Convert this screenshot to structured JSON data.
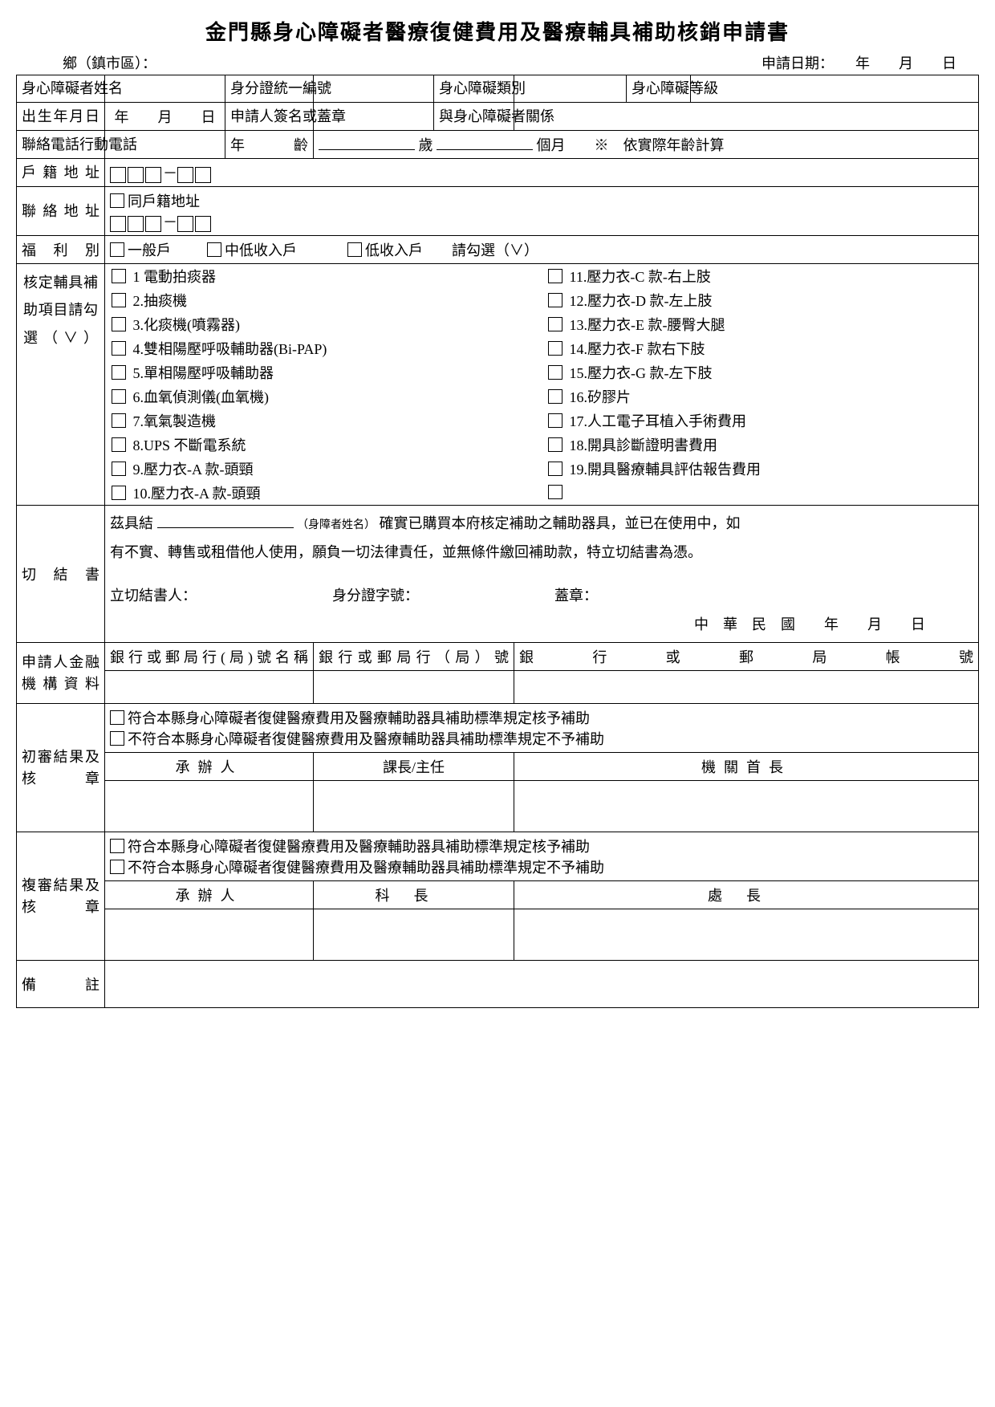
{
  "title": "金門縣身心障礙者醫療復健費用及醫療輔具補助核銷申請書",
  "topleft": "鄉（鎮市區）：",
  "topright_date": "申請日期：　　年　　月　　日",
  "labels": {
    "name": "身心障礙者姓名",
    "id": "身分證統一編號",
    "type": "身心障礙類別",
    "level": "身心障礙等級",
    "birth": "出生年月日",
    "birth_val": "年　　月　　日",
    "applicant": "申請人簽名或蓋章",
    "relation": "與身心障礙者關係",
    "tel": "聯絡電話行動電話",
    "age_label": "年　　　齡",
    "age_unit1": "歲",
    "age_unit2": "個月",
    "age_note": "※　依實際年齡計算",
    "reg_addr": "戶籍地址",
    "contact_addr": "聯絡地址",
    "same_addr": "同戶籍地址",
    "welfare": "福利別",
    "welfare_opts": [
      "一般戶",
      "中低收入戶",
      "低收入戶"
    ],
    "welfare_hint": "請勾選（∨）",
    "approved_items": "核定輔具補助項目請勾選（∨）",
    "affidavit": "切結書",
    "aff_text1_a": "茲具結",
    "aff_text1_b": "確實已購買本府核定補助之輔助器具，並已在使用中，如",
    "aff_name_hint": "（身障者姓名）",
    "aff_text2": "有不實、轉售或租借他人使用，願負一切法律責任，並無條件繳回補助款，特立切結書為憑。",
    "aff_signer": "立切結書人：",
    "aff_id": "身分證字號：",
    "aff_seal": "蓋章：",
    "aff_date": "中　華　民　國　　年　　月　　日",
    "bank_section": "申請人金融機構資料",
    "bank_name": "銀行或郵局行(局)號名稱",
    "bank_branch": "銀行或郵局行（局）號",
    "bank_account": "銀行或郵局帳號",
    "review1": "初審結果及核章",
    "review2": "複審結果及核章",
    "review_opt1": "符合本縣身心障礙者復健醫療費用及醫療輔助器具補助標準規定核予補助",
    "review_opt2": "不符合本縣身心障礙者復健醫療費用及醫療輔助器具補助標準規定不予補助",
    "r1_h1": "承辦人",
    "r1_h2": "課長/主任",
    "r1_h3": "機關首長",
    "r2_h1": "承辦人",
    "r2_h2": "科長",
    "r2_h3": "處長",
    "remark": "備註"
  },
  "items_left": [
    "1 電動拍痰器",
    "2.抽痰機",
    "3.化痰機(噴霧器)",
    "4.雙相陽壓呼吸輔助器(Bi-PAP)",
    "5.單相陽壓呼吸輔助器",
    "6.血氧偵測儀(血氧機)",
    "7.氧氣製造機",
    "8.UPS 不斷電系統",
    "9.壓力衣-A 款-頭頸",
    "10.壓力衣-A 款-頭頸"
  ],
  "items_right": [
    "11.壓力衣-C 款-右上肢",
    "12.壓力衣-D 款-左上肢",
    "13.壓力衣-E 款-腰臀大腿",
    "14.壓力衣-F 款右下肢",
    "15.壓力衣-G 款-左下肢",
    "16.矽膠片",
    "17.人工電子耳植入手術費用",
    "18.開具診斷證明書費用",
    "19.開具醫療輔具評估報告費用",
    ""
  ]
}
